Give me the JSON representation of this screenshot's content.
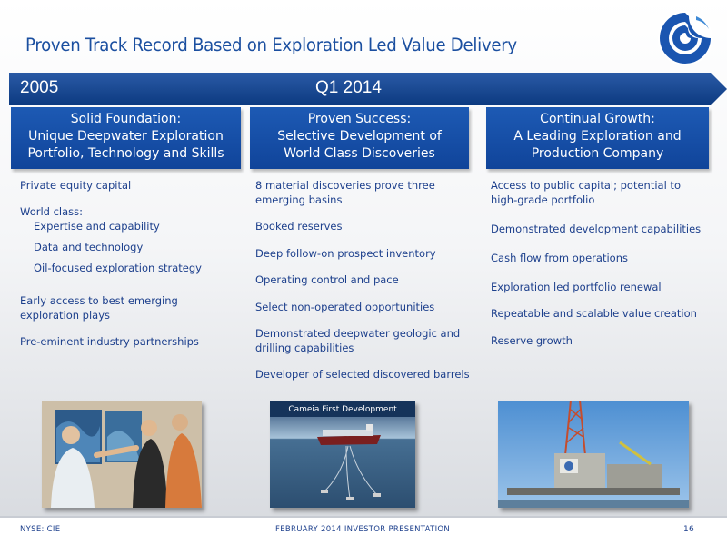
{
  "title": "Proven Track Record Based on Exploration Led Value Delivery",
  "timeline": {
    "start": "2005",
    "end": "Q1 2014",
    "color": "#0f3f87"
  },
  "accent_color": "#1b4fa0",
  "columns": [
    {
      "heading": [
        "Solid Foundation:",
        "Unique Deepwater Exploration",
        "Portfolio, Technology and Skills"
      ],
      "items": [
        {
          "text": "Private equity capital"
        },
        {
          "text": "World class:"
        },
        {
          "text": "Expertise and capability",
          "indent": true
        },
        {
          "text": "Data and technology",
          "indent": true
        },
        {
          "text": "Oil-focused exploration strategy",
          "indent": true
        },
        {
          "text": "Early access to best emerging"
        },
        {
          "text": "exploration plays"
        },
        {
          "text": "Pre-eminent industry partnerships"
        }
      ]
    },
    {
      "heading": [
        "Proven Success:",
        "Selective Development of",
        "World Class Discoveries"
      ],
      "items": [
        {
          "text": "8 material discoveries prove three"
        },
        {
          "text": "emerging basins"
        },
        {
          "text": "Booked reserves"
        },
        {
          "text": "Deep follow-on prospect inventory"
        },
        {
          "text": "Operating control and pace"
        },
        {
          "text": "Select non-operated opportunities"
        },
        {
          "text": "Demonstrated deepwater geologic and"
        },
        {
          "text": "drilling capabilities"
        },
        {
          "text": "Developer of selected discovered barrels"
        }
      ]
    },
    {
      "heading": [
        "Continual Growth:",
        "A Leading Exploration and",
        "Production Company"
      ],
      "items": [
        {
          "text": "Access to public capital; potential to"
        },
        {
          "text": "high-grade portfolio"
        },
        {
          "text": "Demonstrated development capabilities"
        },
        {
          "text": "Cash flow from operations"
        },
        {
          "text": "Exploration led portfolio renewal"
        },
        {
          "text": "Repeatable and scalable value creation"
        },
        {
          "text": "Reserve growth"
        }
      ]
    }
  ],
  "photos": {
    "team_meeting": {
      "icon": "people-photo"
    },
    "fpso": {
      "caption": "Cameia First Development",
      "icon": "fpso-vessel-photo"
    },
    "rig": {
      "icon": "drilling-rig-photo"
    }
  },
  "footer": {
    "left": "NYSE: CIE",
    "center": "FEBRUARY 2014 INVESTOR PRESENTATION",
    "page": "16"
  }
}
